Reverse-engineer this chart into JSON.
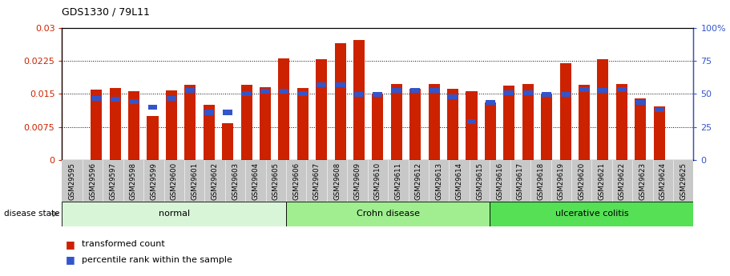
{
  "title": "GDS1330 / 79L11",
  "samples": [
    "GSM29595",
    "GSM29596",
    "GSM29597",
    "GSM29598",
    "GSM29599",
    "GSM29600",
    "GSM29601",
    "GSM29602",
    "GSM29603",
    "GSM29604",
    "GSM29605",
    "GSM29606",
    "GSM29607",
    "GSM29608",
    "GSM29609",
    "GSM29610",
    "GSM29611",
    "GSM29612",
    "GSM29613",
    "GSM29614",
    "GSM29615",
    "GSM29616",
    "GSM29617",
    "GSM29618",
    "GSM29619",
    "GSM29620",
    "GSM29621",
    "GSM29622",
    "GSM29623",
    "GSM29624",
    "GSM29625"
  ],
  "red_values": [
    0.0159,
    0.0163,
    0.0156,
    0.01,
    0.0157,
    0.017,
    0.0126,
    0.0083,
    0.017,
    0.0165,
    0.023,
    0.0163,
    0.0228,
    0.0265,
    0.0272,
    0.015,
    0.0172,
    0.0162,
    0.0172,
    0.0162,
    0.0156,
    0.013,
    0.0168,
    0.0172,
    0.0151,
    0.0219,
    0.017,
    0.0228,
    0.0172,
    0.014,
    0.0121
  ],
  "blue_values": [
    0.014,
    0.0138,
    0.0133,
    0.012,
    0.014,
    0.0157,
    0.0108,
    0.0108,
    0.015,
    0.0156,
    0.0156,
    0.015,
    0.017,
    0.017,
    0.0148,
    0.0148,
    0.0158,
    0.0157,
    0.0157,
    0.0143,
    0.0087,
    0.013,
    0.0153,
    0.0153,
    0.0148,
    0.0148,
    0.016,
    0.0157,
    0.016,
    0.013,
    0.0115
  ],
  "groups": [
    {
      "label": "normal",
      "start": 0,
      "end": 10,
      "color": "#d8f5d8"
    },
    {
      "label": "Crohn disease",
      "start": 11,
      "end": 20,
      "color": "#a0ee90"
    },
    {
      "label": "ulcerative colitis",
      "start": 21,
      "end": 30,
      "color": "#55e055"
    }
  ],
  "left_ylim": [
    0,
    0.03
  ],
  "right_ylim": [
    0,
    100
  ],
  "left_yticks": [
    0,
    0.0075,
    0.015,
    0.0225,
    0.03
  ],
  "right_yticks": [
    0,
    25,
    50,
    75,
    100
  ],
  "left_ytick_labels": [
    "0",
    "0.0075",
    "0.015",
    "0.0225",
    "0.03"
  ],
  "right_ytick_labels": [
    "0",
    "25",
    "50",
    "75",
    "100%"
  ],
  "bar_color_red": "#cc2200",
  "bar_color_blue": "#3355cc",
  "disease_state_label": "disease state",
  "legend_red": "transformed count",
  "legend_blue": "percentile rank within the sample",
  "bar_width": 0.6,
  "blue_bar_height": 0.0011
}
